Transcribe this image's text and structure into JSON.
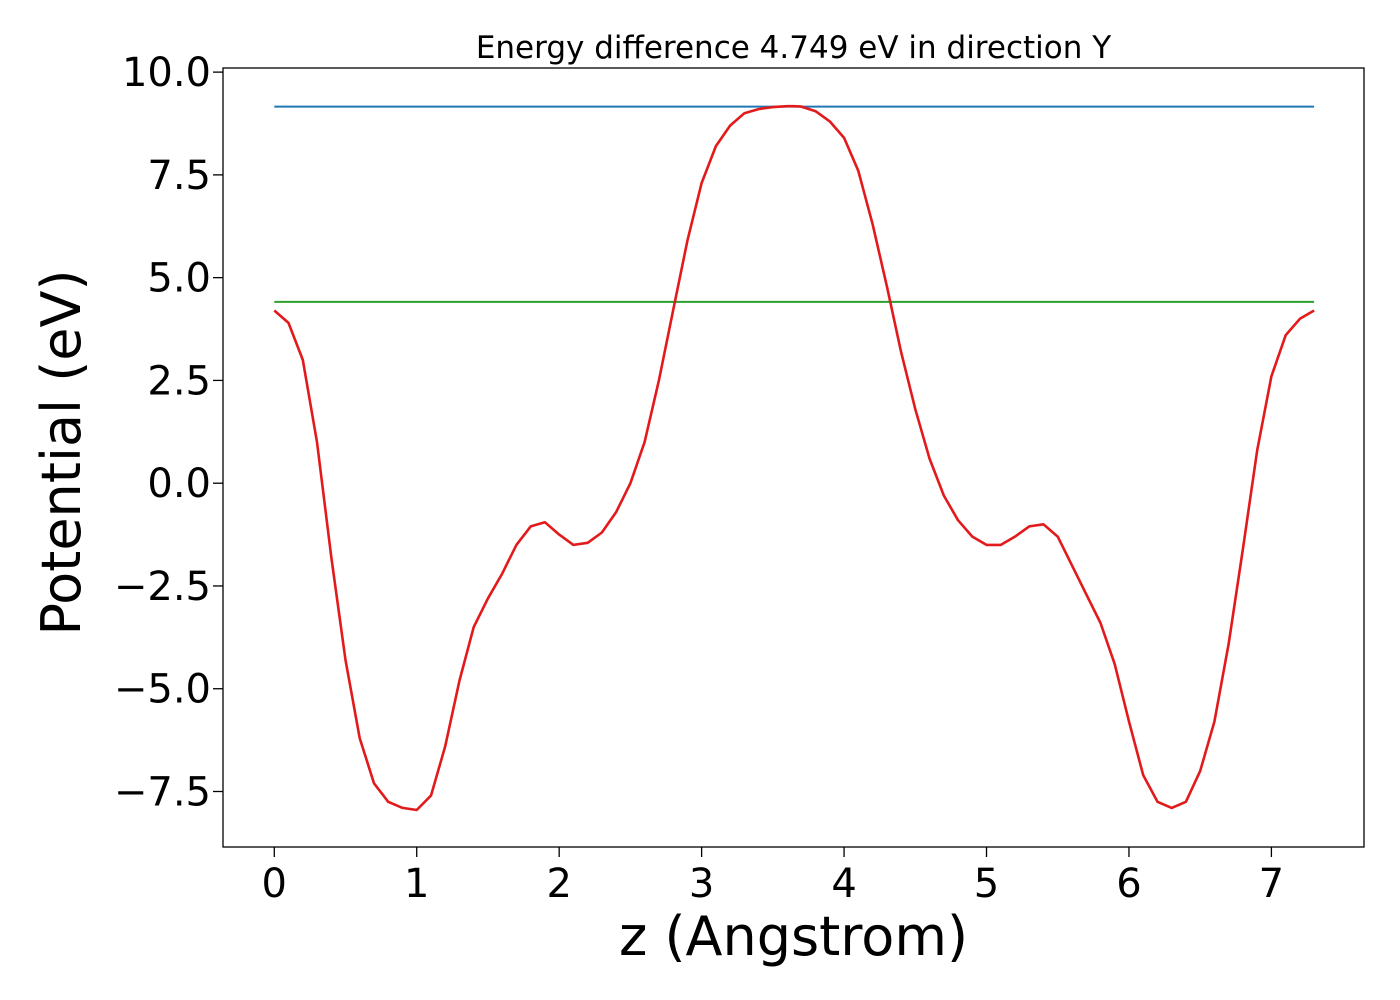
{
  "chart_data": {
    "type": "line",
    "title": "Energy difference 4.749 eV in direction Y",
    "xlabel": "z (Angstrom)",
    "ylabel": "Potential (eV)",
    "xlim": [
      -0.36,
      7.65
    ],
    "ylim": [
      -8.85,
      10.1
    ],
    "xticks": [
      0,
      1,
      2,
      3,
      4,
      5,
      6,
      7
    ],
    "xtick_labels": [
      "0",
      "1",
      "2",
      "3",
      "4",
      "5",
      "6",
      "7"
    ],
    "yticks": [
      10.0,
      7.5,
      5.0,
      2.5,
      0.0,
      -2.5,
      -5.0,
      -7.5
    ],
    "ytick_labels": [
      "10.0",
      "7.5",
      "5.0",
      "2.5",
      "0.0",
      "−2.5",
      "−5.0",
      "−7.5"
    ],
    "grid": false,
    "series": [
      {
        "color": "#1f77b4",
        "x": [
          0.0,
          7.3
        ],
        "y": [
          9.16,
          9.16
        ]
      },
      {
        "color": "#2ca02c",
        "x": [
          0.0,
          7.3
        ],
        "y": [
          4.41,
          4.41
        ]
      },
      {
        "color": "#e31a1c",
        "x": [
          0.0,
          0.1,
          0.2,
          0.3,
          0.4,
          0.5,
          0.6,
          0.7,
          0.8,
          0.9,
          1.0,
          1.1,
          1.2,
          1.3,
          1.4,
          1.5,
          1.6,
          1.7,
          1.8,
          1.9,
          2.0,
          2.1,
          2.2,
          2.3,
          2.4,
          2.5,
          2.6,
          2.7,
          2.8,
          2.9,
          3.0,
          3.1,
          3.2,
          3.3,
          3.4,
          3.5,
          3.6,
          3.65,
          3.7,
          3.8,
          3.9,
          4.0,
          4.1,
          4.2,
          4.3,
          4.4,
          4.5,
          4.6,
          4.7,
          4.8,
          4.9,
          5.0,
          5.1,
          5.2,
          5.3,
          5.4,
          5.5,
          5.6,
          5.7,
          5.8,
          5.9,
          6.0,
          6.1,
          6.2,
          6.3,
          6.4,
          6.5,
          6.6,
          6.7,
          6.8,
          6.9,
          7.0,
          7.1,
          7.2,
          7.3
        ],
        "y": [
          4.2,
          3.9,
          3.0,
          1.0,
          -1.8,
          -4.3,
          -6.2,
          -7.3,
          -7.75,
          -7.9,
          -7.95,
          -7.6,
          -6.4,
          -4.8,
          -3.5,
          -2.8,
          -2.2,
          -1.5,
          -1.05,
          -0.95,
          -1.25,
          -1.5,
          -1.45,
          -1.2,
          -0.7,
          0.0,
          1.0,
          2.5,
          4.2,
          5.9,
          7.3,
          8.2,
          8.7,
          9.0,
          9.1,
          9.15,
          9.17,
          9.17,
          9.16,
          9.05,
          8.8,
          8.4,
          7.6,
          6.3,
          4.8,
          3.2,
          1.8,
          0.6,
          -0.3,
          -0.9,
          -1.3,
          -1.5,
          -1.5,
          -1.3,
          -1.05,
          -1.0,
          -1.3,
          -2.0,
          -2.7,
          -3.4,
          -4.4,
          -5.8,
          -7.1,
          -7.75,
          -7.9,
          -7.75,
          -7.0,
          -5.8,
          -3.9,
          -1.6,
          0.8,
          2.6,
          3.6,
          4.0,
          4.2
        ]
      }
    ]
  }
}
